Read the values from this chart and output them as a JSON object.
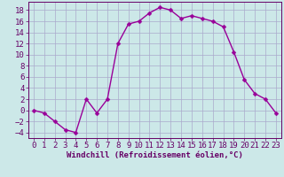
{
  "x": [
    0,
    1,
    2,
    3,
    4,
    5,
    6,
    7,
    8,
    9,
    10,
    11,
    12,
    13,
    14,
    15,
    16,
    17,
    18,
    19,
    20,
    21,
    22,
    23
  ],
  "y": [
    0,
    -0.5,
    -2,
    -3.5,
    -4,
    2,
    -0.5,
    2,
    12,
    15.5,
    16,
    17.5,
    18.5,
    18,
    16.5,
    17,
    16.5,
    16,
    15,
    10.5,
    5.5,
    3,
    2,
    -0.5
  ],
  "line_color": "#990099",
  "marker_color": "#990099",
  "bg_color": "#cce8e8",
  "grid_color": "#aaaacc",
  "xlabel": "Windchill (Refroidissement éolien,°C)",
  "ylabel": "",
  "ylim": [
    -5,
    19.5
  ],
  "xlim": [
    -0.5,
    23.5
  ],
  "yticks": [
    -4,
    -2,
    0,
    2,
    4,
    6,
    8,
    10,
    12,
    14,
    16,
    18
  ],
  "xticks": [
    0,
    1,
    2,
    3,
    4,
    5,
    6,
    7,
    8,
    9,
    10,
    11,
    12,
    13,
    14,
    15,
    16,
    17,
    18,
    19,
    20,
    21,
    22,
    23
  ],
  "axis_color": "#660066",
  "font_size": 6.5,
  "marker_size": 2.5,
  "line_width": 1.0
}
